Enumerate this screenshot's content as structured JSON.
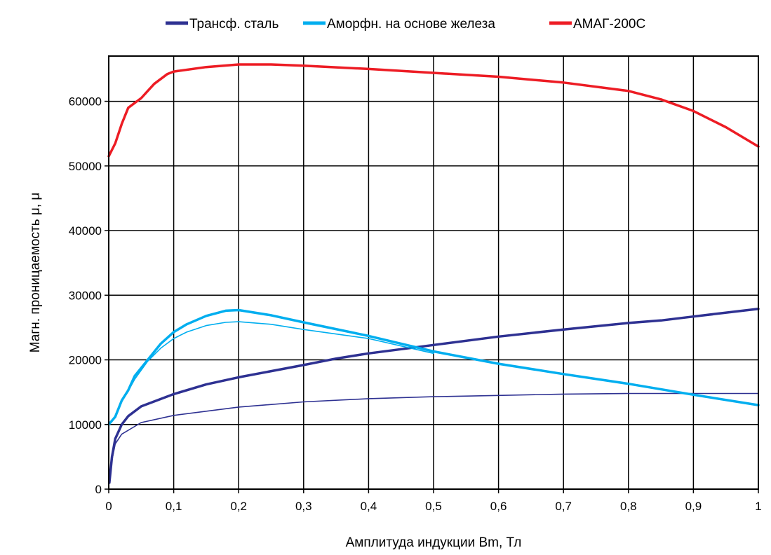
{
  "chart_data": {
    "type": "line",
    "title": "",
    "xlabel": "Амплитуда индукции Bm, Тл",
    "ylabel": "Магн. проницаемость μ, μ",
    "xlim": [
      0,
      1
    ],
    "ylim": [
      0,
      67000
    ],
    "x_ticks": [
      0,
      0.1,
      0.2,
      0.3,
      0.4,
      0.5,
      0.6,
      0.7,
      0.8,
      0.9,
      1
    ],
    "x_tick_labels": [
      "0",
      "0,1",
      "0,2",
      "0,3",
      "0,4",
      "0,5",
      "0,6",
      "0,7",
      "0,8",
      "0,9",
      "1"
    ],
    "y_ticks": [
      0,
      10000,
      20000,
      30000,
      40000,
      50000,
      60000
    ],
    "y_tick_labels": [
      "0",
      "10000",
      "20000",
      "30000",
      "40000",
      "50000",
      "60000"
    ],
    "grid": true,
    "legend_position": "top",
    "legend": [
      {
        "label": "Трансф. сталь",
        "color": "#2e3192"
      },
      {
        "label": "Аморфн. на основе железа",
        "color": "#00aeef"
      },
      {
        "label": "АМАГ-200С",
        "color": "#ed1c24"
      }
    ],
    "series": [
      {
        "legend_index": 0,
        "color": "#2e3192",
        "weight": "thick",
        "points": [
          [
            0.001,
            1000
          ],
          [
            0.005,
            5000
          ],
          [
            0.01,
            7800
          ],
          [
            0.02,
            10000
          ],
          [
            0.03,
            11300
          ],
          [
            0.05,
            12800
          ],
          [
            0.1,
            14700
          ],
          [
            0.15,
            16200
          ],
          [
            0.2,
            17300
          ],
          [
            0.3,
            19200
          ],
          [
            0.35,
            20200
          ],
          [
            0.4,
            21000
          ],
          [
            0.5,
            22300
          ],
          [
            0.6,
            23600
          ],
          [
            0.7,
            24700
          ],
          [
            0.8,
            25700
          ],
          [
            0.85,
            26100
          ],
          [
            0.9,
            26700
          ],
          [
            1.0,
            27900
          ]
        ]
      },
      {
        "legend_index": 0,
        "color": "#2e3192",
        "weight": "thin",
        "points": [
          [
            0.001,
            1000
          ],
          [
            0.005,
            4500
          ],
          [
            0.01,
            7000
          ],
          [
            0.02,
            8500
          ],
          [
            0.05,
            10300
          ],
          [
            0.1,
            11400
          ],
          [
            0.2,
            12700
          ],
          [
            0.3,
            13500
          ],
          [
            0.4,
            14000
          ],
          [
            0.5,
            14300
          ],
          [
            0.6,
            14500
          ],
          [
            0.7,
            14700
          ],
          [
            0.8,
            14800
          ],
          [
            0.9,
            14800
          ],
          [
            1.0,
            14800
          ]
        ]
      },
      {
        "legend_index": 1,
        "color": "#00aeef",
        "weight": "thick",
        "points": [
          [
            0,
            10000
          ],
          [
            0.01,
            11200
          ],
          [
            0.02,
            13700
          ],
          [
            0.03,
            15300
          ],
          [
            0.04,
            17500
          ],
          [
            0.06,
            20000
          ],
          [
            0.08,
            22500
          ],
          [
            0.1,
            24300
          ],
          [
            0.12,
            25500
          ],
          [
            0.15,
            26800
          ],
          [
            0.18,
            27600
          ],
          [
            0.2,
            27700
          ],
          [
            0.25,
            26900
          ],
          [
            0.3,
            25800
          ],
          [
            0.4,
            23700
          ],
          [
            0.5,
            21300
          ],
          [
            0.6,
            19400
          ],
          [
            0.7,
            17800
          ],
          [
            0.8,
            16300
          ],
          [
            0.9,
            14600
          ],
          [
            1.0,
            13000
          ]
        ]
      },
      {
        "legend_index": 1,
        "color": "#00aeef",
        "weight": "thin",
        "points": [
          [
            0,
            10000
          ],
          [
            0.01,
            11200
          ],
          [
            0.02,
            13500
          ],
          [
            0.03,
            15200
          ],
          [
            0.04,
            17000
          ],
          [
            0.06,
            19800
          ],
          [
            0.08,
            21800
          ],
          [
            0.1,
            23300
          ],
          [
            0.12,
            24300
          ],
          [
            0.15,
            25300
          ],
          [
            0.18,
            25800
          ],
          [
            0.2,
            25900
          ],
          [
            0.25,
            25500
          ],
          [
            0.3,
            24700
          ],
          [
            0.4,
            23300
          ],
          [
            0.5,
            21000
          ]
        ]
      },
      {
        "legend_index": 2,
        "color": "#ed1c24",
        "weight": "thick",
        "points": [
          [
            0,
            51500
          ],
          [
            0.01,
            53500
          ],
          [
            0.02,
            56500
          ],
          [
            0.03,
            59000
          ],
          [
            0.05,
            60500
          ],
          [
            0.07,
            62700
          ],
          [
            0.09,
            64200
          ],
          [
            0.1,
            64600
          ],
          [
            0.15,
            65300
          ],
          [
            0.2,
            65700
          ],
          [
            0.25,
            65700
          ],
          [
            0.3,
            65500
          ],
          [
            0.4,
            65000
          ],
          [
            0.5,
            64400
          ],
          [
            0.6,
            63800
          ],
          [
            0.7,
            62900
          ],
          [
            0.8,
            61600
          ],
          [
            0.85,
            60300
          ],
          [
            0.9,
            58500
          ],
          [
            0.95,
            56000
          ],
          [
            1.0,
            53000
          ]
        ]
      }
    ]
  }
}
